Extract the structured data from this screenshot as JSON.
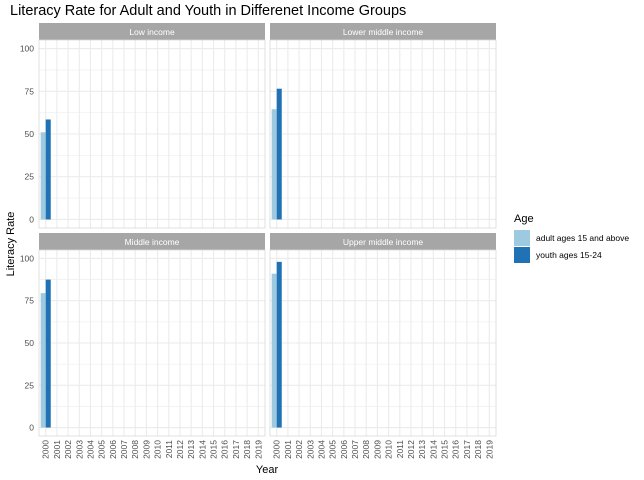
{
  "chart_data": {
    "type": "bar",
    "title": "Literacy Rate for Adult and Youth in Differenet Income Groups",
    "xlabel": "Year",
    "ylabel": "Literacy Rate",
    "x_categories": [
      "2000",
      "2001",
      "2002",
      "2003",
      "2004",
      "2005",
      "2006",
      "2007",
      "2008",
      "2009",
      "2010",
      "2011",
      "2012",
      "2013",
      "2014",
      "2015",
      "2016",
      "2017",
      "2018",
      "2019"
    ],
    "y_ticks": [
      "0",
      "25",
      "50",
      "75",
      "100"
    ],
    "ylim": [
      0,
      100
    ],
    "grid": true,
    "legend": {
      "title": "Age",
      "position": "right",
      "entries": [
        "adult ages 15 and above",
        "youth ages 15-24"
      ]
    },
    "colors": {
      "adult ages 15 and above": "#9ecae1",
      "youth ages 15-24": "#2171b5",
      "strip": "#a6a6a6",
      "grid": "#ebebeb"
    },
    "facets": [
      {
        "name": "Low income",
        "series": [
          {
            "name": "adult ages 15 and above",
            "x": "2000",
            "value": 51
          },
          {
            "name": "youth ages 15-24",
            "x": "2000",
            "value": 58.5
          }
        ]
      },
      {
        "name": "Lower middle income",
        "series": [
          {
            "name": "adult ages 15 and above",
            "x": "2000",
            "value": 64.5
          },
          {
            "name": "youth ages 15-24",
            "x": "2000",
            "value": 76.5
          }
        ]
      },
      {
        "name": "Middle income",
        "series": [
          {
            "name": "adult ages 15 and above",
            "x": "2000",
            "value": 79.5
          },
          {
            "name": "youth ages 15-24",
            "x": "2000",
            "value": 87.5
          }
        ]
      },
      {
        "name": "Upper middle income",
        "series": [
          {
            "name": "adult ages 15 and above",
            "x": "2000",
            "value": 91
          },
          {
            "name": "youth ages 15-24",
            "x": "2000",
            "value": 98
          }
        ]
      }
    ]
  }
}
